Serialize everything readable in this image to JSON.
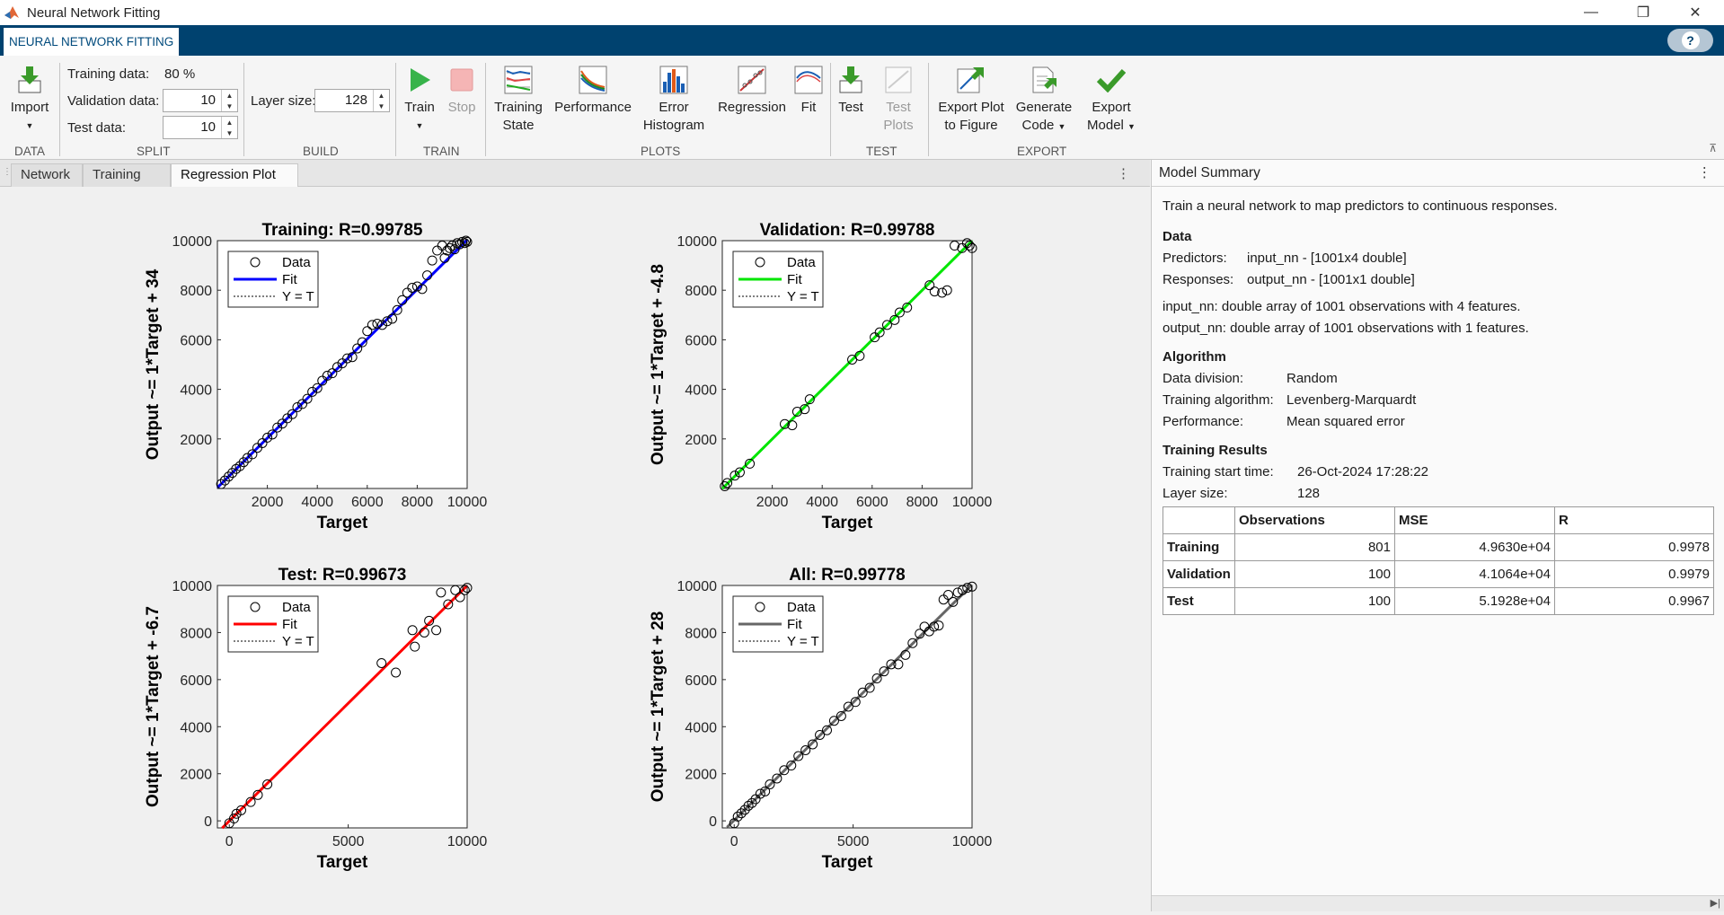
{
  "window": {
    "title": "Neural Network Fitting",
    "minimize": "—",
    "restore": "❐",
    "close": "✕"
  },
  "app_tab": "NEURAL NETWORK FITTING",
  "help_icon": "?",
  "toolstrip": {
    "import_label": "Import",
    "training_data_label": "Training data:",
    "training_data_value": "80 %",
    "validation_data_label": "Validation data:",
    "validation_data_value": "10",
    "test_data_label": "Test data:",
    "test_data_value": "10",
    "layer_size_label": "Layer size:",
    "layer_size_value": "128",
    "train_label": "Train",
    "stop_label": "Stop",
    "training_state_label": [
      "Training",
      "State"
    ],
    "performance_label": "Performance",
    "error_histogram_label": [
      "Error",
      "Histogram"
    ],
    "regression_label": "Regression",
    "fit_label": "Fit",
    "test_label": "Test",
    "test_plots_label": [
      "Test",
      "Plots"
    ],
    "export_plot_label": [
      "Export Plot",
      "to Figure"
    ],
    "generate_code_label": [
      "Generate",
      "Code"
    ],
    "export_model_label": [
      "Export",
      "Model"
    ],
    "sections": {
      "data": "DATA",
      "split": "SPLIT",
      "build": "BUILD",
      "train": "TRAIN",
      "plots": "PLOTS",
      "test": "TEST",
      "export": "EXPORT"
    }
  },
  "doc_tabs": [
    "Network",
    "Training",
    "Regression Plot"
  ],
  "chart_data": [
    {
      "type": "scatter",
      "title": "Training: R=0.99785",
      "xlabel": "Target",
      "ylabel": "Output ~= 1*Target + 34",
      "xlim": [
        0,
        10000
      ],
      "ylim": [
        0,
        10000
      ],
      "xticks": [
        2000,
        4000,
        6000,
        8000,
        10000
      ],
      "yticks": [
        2000,
        4000,
        6000,
        8000,
        10000
      ],
      "fit_color": "#0000ff",
      "fit_slope": 1,
      "fit_intercept": 34,
      "legend": [
        "Data",
        "Fit",
        "Y = T"
      ],
      "legend_position": "top-left",
      "x": [
        150,
        300,
        450,
        600,
        750,
        900,
        1050,
        1200,
        1400,
        1600,
        1800,
        2000,
        2200,
        2400,
        2600,
        2800,
        3000,
        3200,
        3400,
        3600,
        3800,
        4000,
        4200,
        4400,
        4600,
        4800,
        5000,
        5200,
        5400,
        5600,
        5800,
        6000,
        6200,
        6400,
        6600,
        6800,
        7000,
        7200,
        7400,
        7600,
        7800,
        8000,
        8200,
        8400,
        8600,
        8800,
        9000,
        9100,
        9200,
        9300,
        9400,
        9500,
        9600,
        9700,
        9800,
        9900,
        9950,
        10000
      ],
      "y": [
        180,
        320,
        480,
        630,
        790,
        900,
        1060,
        1230,
        1380,
        1640,
        1830,
        2050,
        2180,
        2460,
        2620,
        2830,
        3000,
        3280,
        3410,
        3620,
        3900,
        4050,
        4350,
        4550,
        4650,
        4900,
        5050,
        5250,
        5300,
        5650,
        5900,
        6350,
        6600,
        6650,
        6600,
        6750,
        6850,
        7200,
        7600,
        7900,
        8100,
        8150,
        8050,
        8600,
        9200,
        9600,
        9800,
        9300,
        9600,
        9700,
        9800,
        9650,
        9900,
        9850,
        9950,
        9900,
        10000,
        9950
      ]
    },
    {
      "type": "scatter",
      "title": "Validation: R=0.99788",
      "xlabel": "Target",
      "ylabel": "Output ~= 1*Target + -4.8",
      "xlim": [
        0,
        10000
      ],
      "ylim": [
        0,
        10000
      ],
      "xticks": [
        2000,
        4000,
        6000,
        8000,
        10000
      ],
      "yticks": [
        2000,
        4000,
        6000,
        8000,
        10000
      ],
      "fit_color": "#00e600",
      "fit_slope": 1,
      "fit_intercept": -4.8,
      "legend": [
        "Data",
        "Fit",
        "Y = T"
      ],
      "legend_position": "top-left",
      "x": [
        100,
        200,
        500,
        700,
        1100,
        2500,
        2800,
        3000,
        3300,
        3500,
        5200,
        5500,
        6100,
        6300,
        6600,
        6900,
        7100,
        7400,
        8300,
        8500,
        8800,
        9000,
        9300,
        9600,
        9800,
        9900,
        10000
      ],
      "y": [
        90,
        220,
        520,
        650,
        1000,
        2600,
        2550,
        3100,
        3200,
        3600,
        5200,
        5350,
        6100,
        6300,
        6600,
        6800,
        7100,
        7300,
        8200,
        7950,
        7900,
        8000,
        9800,
        9700,
        9900,
        9800,
        9700
      ]
    },
    {
      "type": "scatter",
      "title": "Test: R=0.99673",
      "xlabel": "Target",
      "ylabel": "Output ~= 1*Target + -6.7",
      "xlim": [
        -500,
        10000
      ],
      "ylim": [
        -300,
        10000
      ],
      "xticks": [
        0,
        5000,
        10000
      ],
      "yticks": [
        0,
        2000,
        4000,
        6000,
        8000,
        10000
      ],
      "fit_color": "#ff0000",
      "fit_slope": 1,
      "fit_intercept": -6.7,
      "legend": [
        "Data",
        "Fit",
        "Y = T"
      ],
      "legend_position": "top-left",
      "x": [
        0,
        200,
        300,
        500,
        900,
        1200,
        1600,
        6400,
        7000,
        7700,
        7800,
        8200,
        8400,
        8700,
        8900,
        9200,
        9500,
        9700,
        9900,
        10000
      ],
      "y": [
        -100,
        100,
        300,
        450,
        800,
        1100,
        1550,
        6700,
        6300,
        8100,
        7400,
        8000,
        8500,
        8100,
        9700,
        9200,
        9800,
        9500,
        9800,
        9900
      ]
    },
    {
      "type": "scatter",
      "title": "All: R=0.99778",
      "xlabel": "Target",
      "ylabel": "Output ~= 1*Target + 28",
      "xlim": [
        -500,
        10000
      ],
      "ylim": [
        -300,
        10000
      ],
      "xticks": [
        0,
        5000,
        10000
      ],
      "yticks": [
        0,
        2000,
        4000,
        6000,
        8000,
        10000
      ],
      "fit_color": "#666666",
      "fit_slope": 1,
      "fit_intercept": 28,
      "legend": [
        "Data",
        "Fit",
        "Y = T"
      ],
      "legend_position": "top-left",
      "x": [
        0,
        150,
        300,
        450,
        600,
        750,
        900,
        1100,
        1300,
        1500,
        1800,
        2100,
        2400,
        2700,
        3000,
        3300,
        3600,
        3900,
        4200,
        4500,
        4800,
        5100,
        5400,
        5700,
        6000,
        6300,
        6600,
        6900,
        7200,
        7500,
        7800,
        8000,
        8200,
        8400,
        8600,
        8800,
        9000,
        9200,
        9400,
        9600,
        9800,
        10000
      ],
      "y": [
        -100,
        180,
        320,
        470,
        640,
        760,
        920,
        1150,
        1250,
        1550,
        1800,
        2150,
        2350,
        2750,
        3000,
        3250,
        3650,
        3850,
        4250,
        4450,
        4850,
        5050,
        5450,
        5650,
        6050,
        6350,
        6650,
        6650,
        7050,
        7550,
        7950,
        8250,
        8050,
        8250,
        8300,
        9400,
        9600,
        9300,
        9700,
        9800,
        9900,
        9950
      ]
    }
  ],
  "summary": {
    "header": "Model Summary",
    "intro": "Train a neural network to map predictors to continuous responses.",
    "data_heading": "Data",
    "predictors_label": "Predictors:",
    "predictors_value": "input_nn - [1001x4 double]",
    "responses_label": "Responses:",
    "responses_value": "output_nn - [1001x1 double]",
    "input_desc": "input_nn: double array of 1001 observations with 4 features.",
    "output_desc": "output_nn: double array of 1001 observations with 1 features.",
    "algorithm_heading": "Algorithm",
    "data_division_label": "Data division:",
    "data_division_value": "Random",
    "training_algorithm_label": "Training algorithm:",
    "training_algorithm_value": "Levenberg-Marquardt",
    "performance_label": "Performance:",
    "performance_value": "Mean squared error",
    "results_heading": "Training Results",
    "start_time_label": "Training start time:",
    "start_time_value": "26-Oct-2024 17:28:22",
    "layer_size_label": "Layer size:",
    "layer_size_value": "128",
    "table": {
      "columns": [
        "",
        "Observations",
        "MSE",
        "R"
      ],
      "rows": [
        {
          "name": "Training",
          "obs": "801",
          "mse": "4.9630e+04",
          "r": "0.9978"
        },
        {
          "name": "Validation",
          "obs": "100",
          "mse": "4.1064e+04",
          "r": "0.9979"
        },
        {
          "name": "Test",
          "obs": "100",
          "mse": "5.1928e+04",
          "r": "0.9967"
        }
      ]
    }
  }
}
